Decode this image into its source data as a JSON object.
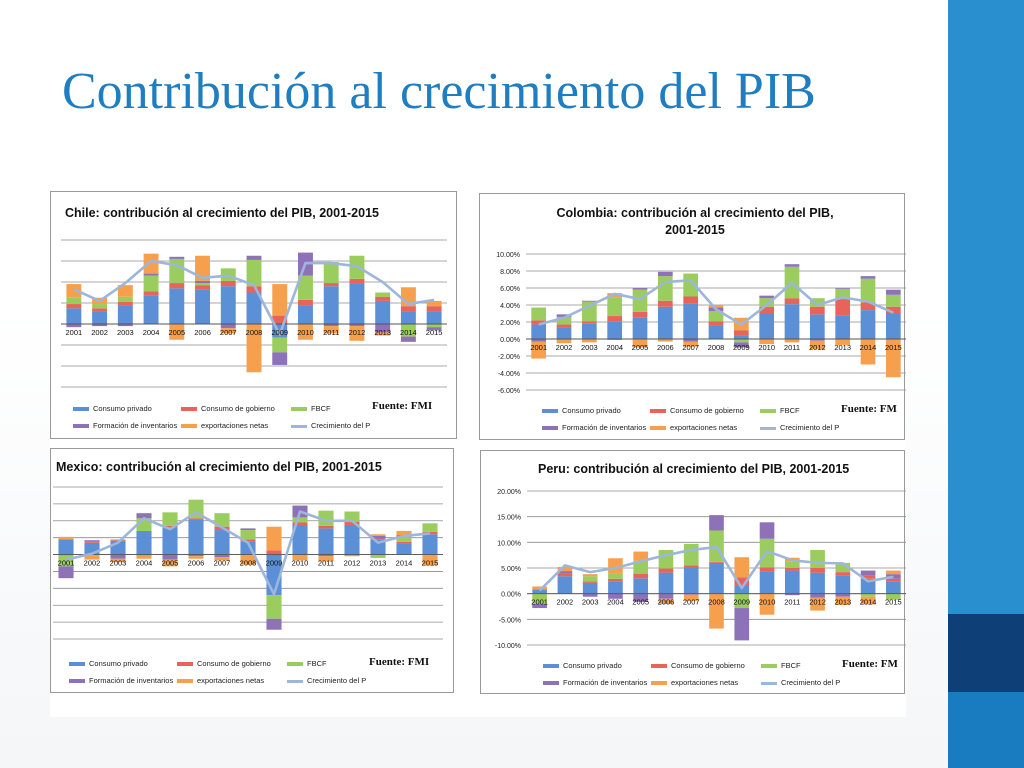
{
  "slide": {
    "title": "Contribución al crecimiento del PIB"
  },
  "legend": {
    "items": [
      {
        "label": "Consumo privado",
        "color": "#5b8fd6",
        "kind": "bar"
      },
      {
        "label": "Consumo de gobierno",
        "color": "#e8645b",
        "kind": "bar"
      },
      {
        "label": "FBCF",
        "color": "#9acd5e",
        "kind": "bar"
      },
      {
        "label": "Formación de inventarios",
        "color": "#8e72b8",
        "kind": "bar"
      },
      {
        "label": "exportaciones netas",
        "color": "#f6a04d",
        "kind": "bar"
      },
      {
        "label": "Crecimiento del P",
        "color": "#9db6da",
        "kind": "line"
      }
    ]
  },
  "chart_data": [
    {
      "type": "bar",
      "title": "Chile: contribución al crecimiento del PIB, 2001-2015",
      "source": "Fuente: FMI",
      "categories": [
        "2001",
        "2002",
        "2003",
        "2004",
        "2005",
        "2006",
        "2007",
        "2008",
        "2009",
        "2010",
        "2011",
        "2012",
        "2013",
        "2014",
        "2015"
      ],
      "ylim": [
        -6,
        8
      ],
      "ytick_labels": false,
      "series": [
        {
          "name": "Consumo privado",
          "values": [
            1.5,
            1.2,
            1.8,
            2.7,
            3.4,
            3.3,
            3.6,
            3.0,
            -1.3,
            1.8,
            3.6,
            3.9,
            2.2,
            1.2,
            1.2
          ]
        },
        {
          "name": "Consumo de gobierno",
          "values": [
            0.4,
            0.3,
            0.3,
            0.4,
            0.5,
            0.4,
            0.5,
            0.6,
            0.8,
            0.5,
            0.3,
            0.4,
            0.4,
            0.5,
            0.5
          ]
        },
        {
          "name": "FBCF",
          "values": [
            0.6,
            0.4,
            0.5,
            1.5,
            2.3,
            0.2,
            1.2,
            2.5,
            -1.4,
            2.3,
            2.0,
            2.2,
            0.4,
            -1.2,
            -0.3
          ]
        },
        {
          "name": "Formación de inventarios",
          "values": [
            -0.3,
            -0.2,
            -0.2,
            0.2,
            0.2,
            0.2,
            -0.4,
            0.4,
            -1.2,
            2.2,
            -0.2,
            -0.2,
            -0.8,
            -0.5,
            -0.3
          ]
        },
        {
          "name": "exportaciones netas",
          "values": [
            1.3,
            0.6,
            1.1,
            1.9,
            -1.5,
            2.4,
            -0.5,
            -4.6,
            3.0,
            -1.5,
            -0.7,
            -1.4,
            -0.3,
            1.8,
            0.5
          ]
        },
        {
          "name": "Crecimiento del P",
          "values": [
            3.3,
            2.2,
            3.9,
            6.0,
            5.6,
            4.4,
            4.6,
            3.7,
            -1.0,
            5.8,
            5.8,
            5.5,
            4.0,
            1.9,
            2.3
          ]
        }
      ]
    },
    {
      "type": "bar",
      "title": "Colombia: contribución al crecimiento del PIB, 2001-2015",
      "source": "Fuente: FM",
      "categories": [
        "2001",
        "2002",
        "2003",
        "2004",
        "2005",
        "2006",
        "2007",
        "2008",
        "2009",
        "2010",
        "2011",
        "2012",
        "2013",
        "2014",
        "2015"
      ],
      "ylim": [
        -6,
        10
      ],
      "yticks": [
        -6,
        -4,
        -2,
        0,
        2,
        4,
        6,
        8,
        10
      ],
      "ytick_format": "percent",
      "series": [
        {
          "name": "Consumo privado",
          "values": [
            1.7,
            1.4,
            1.8,
            2.1,
            2.5,
            3.8,
            4.2,
            1.6,
            0.4,
            3.0,
            4.1,
            2.9,
            2.8,
            3.4,
            3.0
          ]
        },
        {
          "name": "Consumo de gobierno",
          "values": [
            0.5,
            0.3,
            0.3,
            0.6,
            0.7,
            0.7,
            0.8,
            0.5,
            0.6,
            0.8,
            0.7,
            0.9,
            1.9,
            0.9,
            0.8
          ]
        },
        {
          "name": "FBCF",
          "values": [
            1.5,
            0.9,
            2.3,
            2.2,
            2.6,
            2.9,
            2.7,
            1.2,
            -0.4,
            1.0,
            3.7,
            1.0,
            1.2,
            2.8,
            1.4
          ]
        },
        {
          "name": "Formación de inventarios",
          "values": [
            -0.3,
            0.3,
            0.1,
            -0.1,
            0.2,
            0.5,
            -0.3,
            0.4,
            -0.6,
            0.3,
            0.3,
            -0.2,
            0.1,
            0.3,
            0.6
          ]
        },
        {
          "name": "exportaciones netas",
          "values": [
            -2.0,
            -0.5,
            -0.4,
            0.5,
            -1.0,
            -0.3,
            -0.6,
            0.3,
            1.5,
            -0.6,
            -0.4,
            -1.0,
            -0.7,
            -3.0,
            -4.5
          ]
        },
        {
          "name": "Crecimiento del P",
          "values": [
            1.7,
            2.5,
            3.9,
            5.3,
            4.7,
            6.7,
            6.9,
            3.5,
            1.7,
            4.0,
            6.6,
            4.0,
            4.9,
            4.4,
            3.1
          ]
        }
      ]
    },
    {
      "type": "bar",
      "title": "Mexico: contribución al crecimiento del PIB, 2001-2015",
      "source": "Fuente: FMI",
      "categories": [
        "2001",
        "2002",
        "2003",
        "2004",
        "2005",
        "2006",
        "2007",
        "2008",
        "2009",
        "2010",
        "2011",
        "2012",
        "2013",
        "2014",
        "2015"
      ],
      "ylim": [
        -10,
        8
      ],
      "ytick_labels": false,
      "series": [
        {
          "name": "Consumo privado",
          "values": [
            1.8,
            1.4,
            1.6,
            2.8,
            3.2,
            4.1,
            2.9,
            1.5,
            -4.8,
            3.5,
            3.1,
            3.5,
            1.8,
            1.3,
            2.4
          ]
        },
        {
          "name": "Consumo de gobierno",
          "values": [
            -0.1,
            0.2,
            0.1,
            -0.1,
            0.2,
            0.2,
            0.4,
            0.3,
            0.5,
            0.3,
            0.3,
            0.4,
            0.1,
            0.2,
            0.3
          ]
        },
        {
          "name": "FBCF",
          "values": [
            -1.3,
            -0.1,
            0.1,
            1.5,
            1.6,
            2.2,
            1.6,
            1.1,
            -2.8,
            0.6,
            1.8,
            1.2,
            -0.4,
            0.6,
            1.0
          ]
        },
        {
          "name": "Formación de inventarios",
          "values": [
            -1.4,
            0.1,
            -0.5,
            0.6,
            -0.6,
            -0.2,
            -0.3,
            0.2,
            -1.3,
            1.4,
            -0.2,
            -0.1,
            0.3,
            0.2,
            0.0
          ]
        },
        {
          "name": "exportaciones netas",
          "values": [
            0.3,
            -0.5,
            -0.4,
            -0.4,
            -0.8,
            -0.3,
            -0.4,
            -1.2,
            2.8,
            -0.7,
            -0.6,
            -0.1,
            0.2,
            0.5,
            -1.3
          ]
        },
        {
          "name": "Crecimiento del P",
          "values": [
            -0.6,
            0.1,
            1.4,
            4.3,
            3.0,
            5.0,
            3.2,
            1.4,
            -4.7,
            5.1,
            4.0,
            4.0,
            1.4,
            2.2,
            2.5
          ]
        }
      ]
    },
    {
      "type": "bar",
      "title": "Peru: contribución al crecimiento del PIB, 2001-2015",
      "source": "Fuente: FM",
      "categories": [
        "2001",
        "2002",
        "2003",
        "2004",
        "2005",
        "2006",
        "2007",
        "2008",
        "2009",
        "2010",
        "2011",
        "2012",
        "2013",
        "2014",
        "2015"
      ],
      "ylim": [
        -10,
        20
      ],
      "yticks": [
        -10,
        -5,
        0,
        5,
        10,
        15,
        20
      ],
      "ytick_format": "percent",
      "series": [
        {
          "name": "Consumo privado",
          "values": [
            0.8,
            3.4,
            2.1,
            2.4,
            3.0,
            4.1,
            5.0,
            6.0,
            1.6,
            4.3,
            4.5,
            4.1,
            3.6,
            2.9,
            2.3
          ]
        },
        {
          "name": "Consumo de gobierno",
          "values": [
            0.0,
            0.5,
            0.3,
            0.5,
            0.9,
            0.8,
            0.5,
            0.2,
            1.6,
            0.8,
            0.5,
            0.9,
            0.6,
            0.6,
            0.6
          ]
        },
        {
          "name": "FBCF",
          "values": [
            -2.0,
            0.0,
            1.0,
            1.0,
            2.5,
            3.6,
            4.2,
            6.1,
            -2.8,
            5.6,
            1.2,
            3.5,
            1.8,
            -0.6,
            -1.2
          ]
        },
        {
          "name": "Formación de inventarios",
          "values": [
            -0.8,
            0.5,
            -0.6,
            -1.0,
            -1.6,
            -1.0,
            -0.2,
            3.0,
            -6.3,
            3.2,
            -0.3,
            -0.8,
            -0.6,
            1.0,
            0.9
          ]
        },
        {
          "name": "exportaciones netas",
          "values": [
            0.6,
            0.8,
            0.4,
            3.0,
            1.8,
            -1.0,
            -1.2,
            -6.8,
            3.9,
            -4.1,
            0.8,
            -2.5,
            -1.6,
            -1.5,
            0.7
          ]
        },
        {
          "name": "Crecimiento del P",
          "values": [
            0.6,
            5.5,
            4.2,
            5.0,
            6.3,
            7.5,
            8.5,
            9.1,
            1.1,
            8.3,
            6.5,
            6.0,
            5.9,
            2.4,
            3.3
          ]
        }
      ]
    }
  ]
}
